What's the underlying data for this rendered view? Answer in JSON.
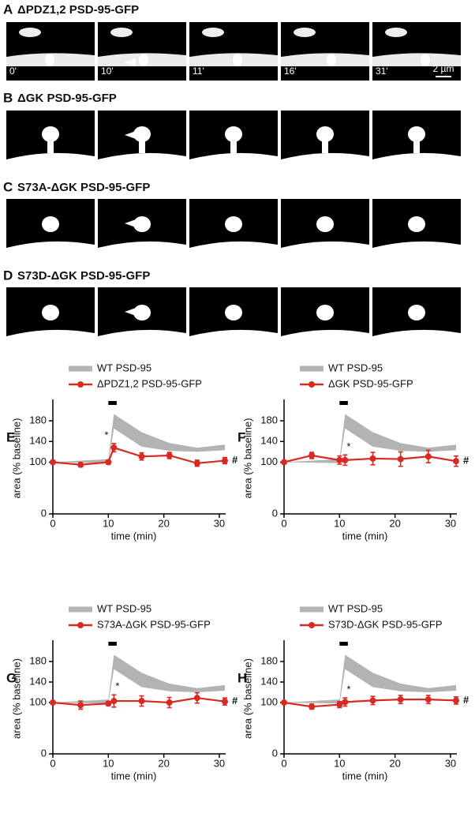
{
  "image_panels": [
    {
      "label": "A",
      "title": "ΔPDZ1,2 PSD-95-GFP",
      "times": [
        "0'",
        "10'",
        "11'",
        "16'",
        "31'"
      ],
      "scale": "2 µm"
    },
    {
      "label": "B",
      "title": "ΔGK PSD-95-GFP"
    },
    {
      "label": "C",
      "title": "S73A-ΔGK PSD-95-GFP"
    },
    {
      "label": "D",
      "title": "S73D-ΔGK PSD-95-GFP"
    }
  ],
  "chart_data": [
    {
      "type": "line",
      "label": "E",
      "xlabel": "time (min)",
      "ylabel": "area (% baseline)",
      "xlim": [
        0,
        32
      ],
      "ylim": [
        0,
        200
      ],
      "xticks": [
        0,
        10,
        20,
        30
      ],
      "yticks": [
        0,
        100,
        140,
        180
      ],
      "band": {
        "name": "WT PSD-95",
        "color": "#b3b3b3",
        "x": [
          0,
          10,
          11,
          16,
          21,
          26,
          31
        ],
        "lower": [
          100,
          98,
          165,
          130,
          122,
          120,
          123
        ],
        "upper": [
          100,
          106,
          193,
          158,
          137,
          128,
          134
        ]
      },
      "series": [
        {
          "name": "ΔPDZ1,2 PSD-95-GFP",
          "color": "#d62a22",
          "x": [
            0,
            5,
            10,
            11,
            16,
            21,
            26,
            31
          ],
          "values": [
            100,
            95,
            100,
            128,
            111,
            113,
            98,
            103
          ],
          "errors": [
            0,
            4,
            4,
            8,
            7,
            6,
            6,
            6
          ]
        }
      ],
      "annotations": [
        "*",
        "#"
      ]
    },
    {
      "type": "line",
      "label": "F",
      "xlabel": "time (min)",
      "ylabel": "area (% baseline)",
      "xlim": [
        0,
        32
      ],
      "ylim": [
        0,
        200
      ],
      "xticks": [
        0,
        10,
        20,
        30
      ],
      "yticks": [
        0,
        100,
        140,
        180
      ],
      "band": {
        "name": "WT PSD-95",
        "color": "#b3b3b3",
        "x": [
          0,
          10,
          11,
          16,
          21,
          26,
          31
        ],
        "lower": [
          100,
          98,
          165,
          130,
          122,
          120,
          123
        ],
        "upper": [
          100,
          106,
          193,
          158,
          137,
          128,
          134
        ]
      },
      "series": [
        {
          "name": "ΔGK PSD-95-GFP",
          "color": "#d62a22",
          "x": [
            0,
            5,
            10,
            11,
            16,
            21,
            26,
            31
          ],
          "values": [
            100,
            113,
            104,
            104,
            107,
            106,
            111,
            102
          ],
          "errors": [
            0,
            6,
            8,
            10,
            12,
            14,
            12,
            10
          ]
        }
      ],
      "annotations": [
        "*",
        "#"
      ]
    },
    {
      "type": "line",
      "label": "G",
      "xlabel": "time (min)",
      "ylabel": "area (% baseline)",
      "xlim": [
        0,
        32
      ],
      "ylim": [
        0,
        200
      ],
      "xticks": [
        0,
        10,
        20,
        30
      ],
      "yticks": [
        0,
        100,
        140,
        180
      ],
      "band": {
        "name": "WT PSD-95",
        "color": "#b3b3b3",
        "x": [
          0,
          10,
          11,
          16,
          21,
          26,
          31
        ],
        "lower": [
          100,
          98,
          165,
          130,
          122,
          120,
          123
        ],
        "upper": [
          100,
          106,
          193,
          158,
          137,
          128,
          134
        ]
      },
      "series": [
        {
          "name": "S73A-ΔGK PSD-95-GFP",
          "color": "#d62a22",
          "x": [
            0,
            5,
            10,
            11,
            16,
            21,
            26,
            31
          ],
          "values": [
            100,
            95,
            98,
            103,
            103,
            100,
            109,
            102
          ],
          "errors": [
            0,
            8,
            4,
            12,
            10,
            10,
            10,
            7
          ]
        }
      ],
      "annotations": [
        "*",
        "#"
      ]
    },
    {
      "type": "line",
      "label": "H",
      "xlabel": "time (min)",
      "ylabel": "area (% baseline)",
      "xlim": [
        0,
        32
      ],
      "ylim": [
        0,
        200
      ],
      "xticks": [
        0,
        10,
        20,
        30
      ],
      "yticks": [
        0,
        100,
        140,
        180
      ],
      "band": {
        "name": "WT PSD-95",
        "color": "#b3b3b3",
        "x": [
          0,
          10,
          11,
          16,
          21,
          26,
          31
        ],
        "lower": [
          100,
          98,
          165,
          130,
          122,
          120,
          123
        ],
        "upper": [
          100,
          106,
          193,
          158,
          137,
          128,
          134
        ]
      },
      "series": [
        {
          "name": "S73D-ΔGK PSD-95-GFP",
          "color": "#d62a22",
          "x": [
            0,
            5,
            10,
            11,
            16,
            21,
            26,
            31
          ],
          "values": [
            100,
            92,
            96,
            101,
            104,
            106,
            106,
            104
          ],
          "errors": [
            0,
            5,
            6,
            8,
            8,
            8,
            8,
            7
          ]
        }
      ],
      "annotations": [
        "*",
        "#"
      ]
    }
  ]
}
